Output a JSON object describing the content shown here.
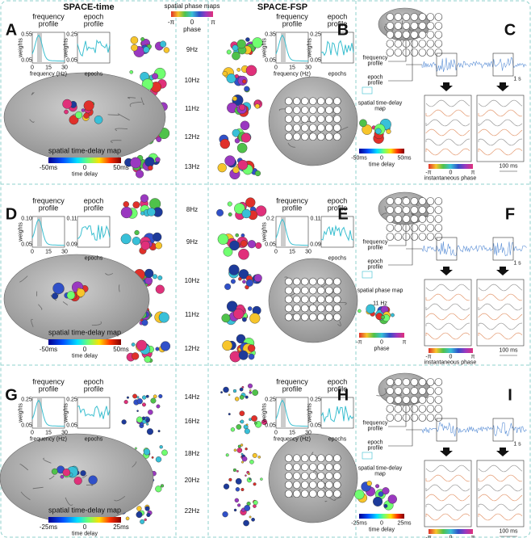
{
  "header": {
    "left_title": "SPACE-time",
    "right_title": "SPACE-FSP",
    "phase_maps": {
      "title": "spatial phase maps",
      "ticks": [
        "-π",
        "0",
        "π"
      ],
      "label": "phase"
    }
  },
  "rows": [
    {
      "frequencies": [
        "9Hz",
        "10Hz",
        "11Hz",
        "12Hz",
        "13Hz"
      ]
    },
    {
      "frequencies": [
        "8Hz",
        "9Hz",
        "10Hz",
        "11Hz",
        "12Hz"
      ]
    },
    {
      "frequencies": [
        "14Hz",
        "16Hz",
        "18Hz",
        "20Hz",
        "22Hz"
      ]
    }
  ],
  "profile_panels": [
    {
      "letter": "A",
      "frequency_profile": {
        "title": "frequency profile",
        "yticks": [
          "0.55",
          "0.05"
        ],
        "ylabel": "weights",
        "xticks": [
          "0",
          "15",
          "30"
        ],
        "xlabel": "frequency (Hz)"
      },
      "epoch_profile": {
        "title": "epoch profile",
        "yticks": [
          "0.25",
          "0.05"
        ],
        "ylabel": "weights",
        "xlabel": "epochs"
      },
      "map": {
        "title": "spatial time-delay map",
        "ticks": [
          "-50ms",
          "0",
          "50ms"
        ],
        "label": "time delay"
      }
    },
    {
      "letter": "B",
      "frequency_profile": {
        "title": "frequency profile",
        "yticks": [
          "0.35",
          "0.05"
        ],
        "ylabel": "weights",
        "xticks": [
          "0",
          "15",
          "30"
        ],
        "xlabel": "frequency (Hz)"
      },
      "epoch_profile": {
        "title": "epoch profile",
        "yticks": [
          "0.25",
          "0.05"
        ],
        "ylabel": "weights",
        "xlabel": "epochs"
      }
    },
    {
      "letter": "D",
      "frequency_profile": {
        "title": "frequency profile",
        "yticks": [
          "0.10",
          "0.05"
        ],
        "ylabel": "weights",
        "xticks": [
          "0",
          "15",
          "30"
        ]
      },
      "epoch_profile": {
        "title": "epoch profile",
        "yticks": [
          "0.11",
          "0.09"
        ],
        "xlabel": "epochs"
      },
      "map": {
        "title": "spatial time-delay map",
        "ticks": [
          "-50ms",
          "0",
          "50ms"
        ],
        "label": "time delay"
      }
    },
    {
      "letter": "E",
      "frequency_profile": {
        "title": "frequency profile",
        "yticks": [
          "0.2",
          "0.05"
        ],
        "ylabel": "weights",
        "xticks": [
          "0",
          "15",
          "30"
        ]
      },
      "epoch_profile": {
        "title": "epoch profile",
        "yticks": [
          "0.11",
          "0.09"
        ],
        "xlabel": "epochs"
      }
    },
    {
      "letter": "G",
      "frequency_profile": {
        "title": "frequency profile",
        "yticks": [
          "0.25",
          "0.05"
        ],
        "ylabel": "weights",
        "xticks": [
          "0",
          "15",
          "30"
        ],
        "xlabel": "frequency (Hz)"
      },
      "epoch_profile": {
        "title": "epoch profile",
        "yticks": [
          "0.25",
          "0.05"
        ],
        "ylabel": "weights",
        "xlabel": "epochs"
      },
      "map": {
        "title": "spatial time-delay map",
        "ticks": [
          "-25ms",
          "0",
          "25ms"
        ],
        "label": "time delay"
      }
    },
    {
      "letter": "H",
      "frequency_profile": {
        "title": "frequency profile",
        "yticks": [
          "0.25",
          "0.05"
        ],
        "ylabel": "weights",
        "xticks": [
          "0",
          "15",
          "30"
        ],
        "xlabel": "frequency (Hz)"
      },
      "epoch_profile": {
        "title": "epoch profile",
        "yticks": [
          "0.25",
          "0.05"
        ],
        "ylabel": "weights",
        "xlabel": "epochs"
      }
    }
  ],
  "schematic_panels": [
    {
      "letter": "C",
      "frequency_profile": "frequency profile",
      "epoch_profile": "epoch profile",
      "scale_time": "1 s",
      "map": {
        "title": "spatial time-delay map",
        "ticks": [
          "-50ms",
          "0",
          "50ms"
        ],
        "label": "time delay"
      },
      "phase_bar": {
        "ticks": [
          "-π",
          "0",
          "π"
        ],
        "label": "instantaneous phase"
      },
      "scale_phase": "100 ms"
    },
    {
      "letter": "F",
      "frequency_profile": "frequency profile",
      "epoch_profile": "epoch profile",
      "scale_time": "1 s",
      "map": {
        "title": "spatial phase map",
        "subtitle": "11 Hz",
        "ticks": [
          "-π",
          "0",
          "π"
        ],
        "label": "phase"
      },
      "phase_bar": {
        "ticks": [
          "-π",
          "0",
          "π"
        ],
        "label": "instantaneous phase"
      },
      "scale_phase": "100 ms"
    },
    {
      "letter": "I",
      "frequency_profile": "frequency profile",
      "epoch_profile": "epoch profile",
      "scale_time": "1 s",
      "map": {
        "title": "spatial time-delay map",
        "ticks": [
          "-25ms",
          "0",
          "25ms"
        ],
        "label": "time delay"
      },
      "phase_bar": {
        "ticks": [
          "-π",
          "0",
          "π"
        ],
        "label": "instantaneous phase"
      },
      "scale_phase": "100 ms"
    }
  ]
}
